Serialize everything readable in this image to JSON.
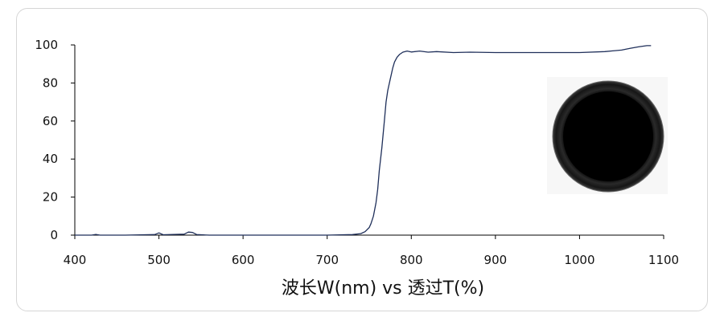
{
  "chart_data": {
    "type": "line",
    "title": "",
    "xlabel": "波长W(nm) vs 透过T(%)",
    "ylabel": "",
    "xlim": [
      400,
      1100
    ],
    "ylim": [
      0,
      100
    ],
    "x_ticks": [
      400,
      500,
      600,
      700,
      800,
      900,
      1000,
      1100
    ],
    "y_ticks": [
      0,
      20,
      40,
      60,
      80,
      100
    ],
    "grid": false,
    "legend": "none",
    "line_color": "#1f2f5a",
    "series": [
      {
        "x": [
          400,
          420,
          425,
          430,
          460,
          495,
          500,
          505,
          530,
          535,
          540,
          545,
          560,
          600,
          650,
          700,
          730,
          740,
          745,
          750,
          752,
          755,
          758,
          760,
          762,
          765,
          768,
          770,
          772,
          775,
          778,
          780,
          783,
          786,
          790,
          795,
          800,
          810,
          820,
          830,
          850,
          870,
          900,
          950,
          1000,
          1030,
          1050,
          1060,
          1070,
          1080,
          1085
        ],
        "y": [
          0,
          0,
          0.4,
          0,
          0,
          0.3,
          1.2,
          0.2,
          0.5,
          1.6,
          1.4,
          0.3,
          0,
          0,
          0,
          0,
          0.3,
          0.8,
          1.8,
          4,
          6,
          10,
          17,
          24,
          34,
          46,
          60,
          70,
          76,
          82,
          88,
          91,
          93.5,
          95,
          96.2,
          96.8,
          96.3,
          96.8,
          96.2,
          96.5,
          96,
          96.2,
          96,
          96,
          96,
          96.5,
          97.3,
          98.2,
          99,
          99.6,
          99.6
        ]
      }
    ]
  },
  "inset_image": "black-circular-filter-disc"
}
